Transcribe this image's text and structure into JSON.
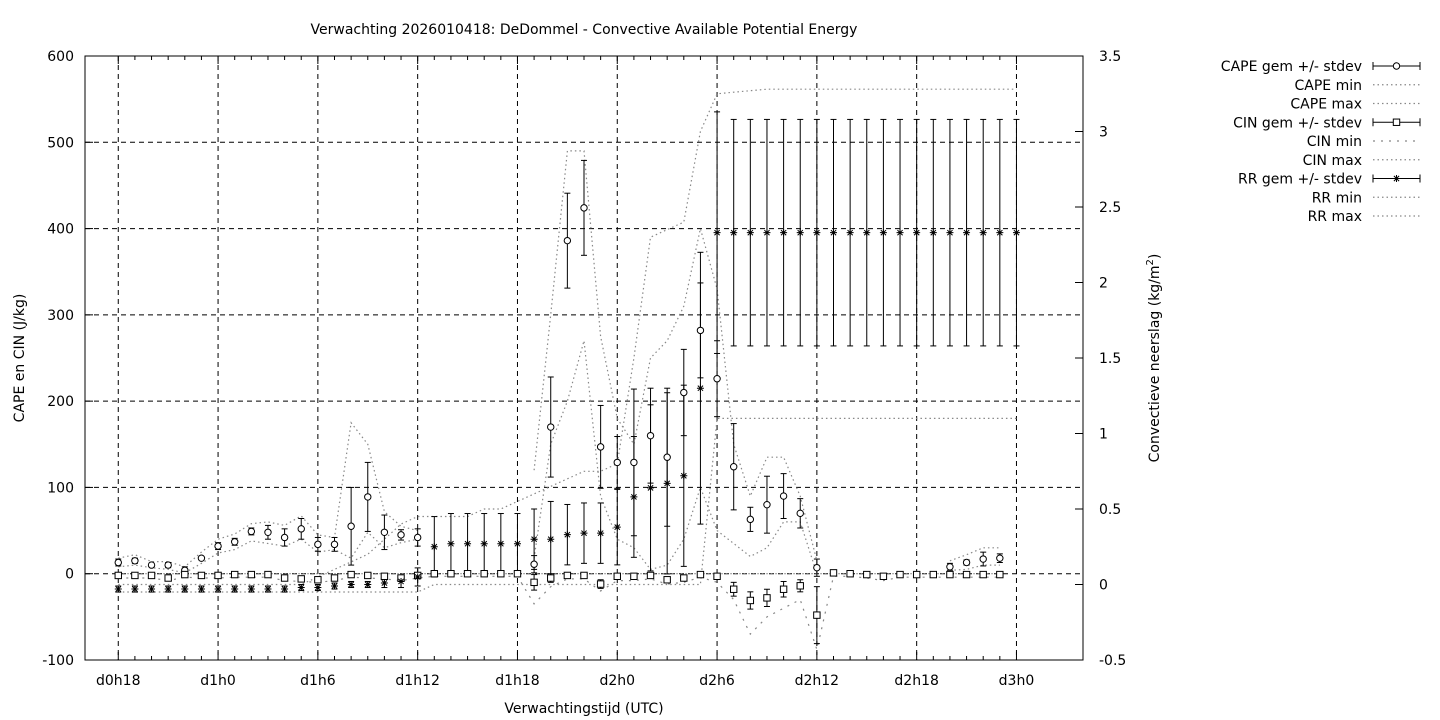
{
  "chart_data": {
    "type": "scatter",
    "title": "Verwachting 2026010418: DeDommel - Convective Available Potential Energy",
    "xlabel": "Verwachtingstijd (UTC)",
    "ylabel": "CAPE en CIN (J/kg)",
    "y2label": "Convectieve neerslag (kg/m",
    "y2label_sup": "2",
    "y2label_end": ")",
    "x_ticks": [
      "d0h18",
      "d1h0",
      "d1h6",
      "d1h12",
      "d1h18",
      "d2h0",
      "d2h6",
      "d2h12",
      "d2h18",
      "d3h0"
    ],
    "xlim": [
      -2,
      58
    ],
    "ylim": [
      -100,
      600
    ],
    "y_ticks": [
      -100,
      0,
      100,
      200,
      300,
      400,
      500,
      600
    ],
    "y2lim": [
      -0.5,
      3.5
    ],
    "y2_ticks": [
      -0.5,
      0,
      0.5,
      1,
      1.5,
      2,
      2.5,
      3,
      3.5
    ],
    "y2_tick_labels": [
      "-0.5",
      "0",
      "0.5",
      "1",
      "1.5",
      "2",
      "2.5",
      "3",
      "3.5"
    ],
    "grid": true,
    "legend_position": "outside-top-right",
    "legend": [
      "CAPE gem +/- stdev",
      "CAPE min",
      "CAPE max",
      "CIN gem +/- stdev",
      "CIN min",
      "CIN max",
      "RR gem +/- stdev",
      "RR min",
      "RR max"
    ],
    "x_hours": [
      0,
      1,
      2,
      3,
      4,
      5,
      6,
      7,
      8,
      9,
      10,
      11,
      12,
      13,
      14,
      15,
      16,
      17,
      18,
      19,
      20,
      21,
      22,
      23,
      24,
      25,
      26,
      27,
      28,
      29,
      30,
      31,
      32,
      33,
      34,
      35,
      36,
      37,
      38,
      39,
      40,
      41,
      42,
      43,
      44,
      45,
      46,
      47,
      48,
      49,
      50,
      51,
      52,
      53,
      54
    ],
    "series": [
      {
        "name": "CAPE gem +/- stdev",
        "axis": "y",
        "marker": "circle",
        "mean": [
          13,
          15,
          10,
          10,
          4,
          18,
          32,
          37,
          49,
          48,
          42,
          52,
          34,
          34,
          55,
          89,
          48,
          45,
          42,
          null,
          null,
          null,
          null,
          null,
          null,
          11,
          170,
          386,
          424,
          147,
          129,
          129,
          160,
          135,
          210,
          282,
          226,
          124,
          63,
          80,
          90,
          70,
          7,
          null,
          null,
          null,
          null,
          null,
          null,
          null,
          8,
          13,
          17,
          18,
          null
        ],
        "stdev": [
          4,
          3,
          2,
          3,
          4,
          2,
          4,
          4,
          4,
          8,
          10,
          12,
          8,
          8,
          45,
          40,
          20,
          6,
          10,
          null,
          null,
          null,
          null,
          null,
          null,
          10,
          58,
          55,
          55,
          48,
          30,
          85,
          55,
          80,
          50,
          55,
          44,
          50,
          14,
          33,
          26,
          17,
          10,
          null,
          null,
          null,
          null,
          null,
          null,
          null,
          4,
          3,
          8,
          5,
          null
        ]
      },
      {
        "name": "CAPE min",
        "axis": "y",
        "values": [
          8,
          10,
          7,
          5,
          1,
          12,
          24,
          28,
          38,
          35,
          32,
          40,
          25,
          28,
          18,
          48,
          30,
          36,
          40,
          null,
          null,
          null,
          null,
          null,
          null,
          18,
          150,
          200,
          270,
          90,
          40,
          30,
          5,
          10,
          40,
          100,
          50,
          35,
          20,
          30,
          60,
          60,
          0,
          null,
          null,
          null,
          null,
          null,
          null,
          null,
          4,
          5,
          10,
          10,
          null
        ]
      },
      {
        "name": "CAPE max",
        "axis": "y",
        "values": [
          18,
          22,
          14,
          14,
          8,
          25,
          40,
          46,
          58,
          60,
          56,
          67,
          45,
          42,
          175,
          150,
          72,
          55,
          50,
          null,
          null,
          null,
          null,
          null,
          null,
          120,
          300,
          490,
          490,
          275,
          180,
          150,
          250,
          270,
          310,
          400,
          330,
          150,
          90,
          135,
          135,
          90,
          15,
          null,
          null,
          null,
          null,
          null,
          null,
          null,
          15,
          22,
          30,
          30,
          null
        ]
      },
      {
        "name": "CIN gem +/- stdev",
        "axis": "y",
        "marker": "square",
        "mean": [
          -2,
          -2,
          -2,
          -5,
          -1,
          -2,
          -2,
          -1,
          -1,
          -1,
          -5,
          -6,
          -7,
          -5,
          -1,
          -2,
          -3,
          -5,
          -2,
          0,
          0,
          0,
          0,
          0,
          0,
          -10,
          -5,
          -2,
          -2,
          -12,
          -3,
          -3,
          -2,
          -7,
          -5,
          -1,
          -3,
          -18,
          -31,
          -28,
          -18,
          -14,
          -48,
          1,
          0,
          -1,
          -3,
          -1,
          -1,
          -1,
          -1,
          -1,
          -1,
          -1,
          null
        ],
        "stdev": [
          3,
          3,
          3,
          3,
          3,
          3,
          3,
          3,
          3,
          3,
          3,
          3,
          3,
          3,
          3,
          3,
          3,
          3,
          3,
          3,
          3,
          3,
          3,
          3,
          3,
          9,
          5,
          2,
          2,
          5,
          3,
          3,
          3,
          3,
          3,
          2,
          3,
          8,
          10,
          10,
          9,
          7,
          33,
          3,
          3,
          3,
          3,
          3,
          3,
          3,
          3,
          3,
          3,
          3,
          null
        ]
      },
      {
        "name": "CIN min",
        "axis": "y",
        "values": [
          -5,
          -5,
          -5,
          -8,
          -4,
          -5,
          -5,
          -4,
          -4,
          -4,
          -8,
          -9,
          -10,
          -8,
          -4,
          -5,
          -6,
          -8,
          -5,
          -3,
          -3,
          -3,
          -3,
          -3,
          -3,
          -35,
          -15,
          -6,
          -6,
          -20,
          -8,
          -8,
          -6,
          -12,
          -10,
          -4,
          -10,
          -30,
          -70,
          -50,
          -40,
          -30,
          -88,
          -3,
          -3,
          -5,
          -8,
          -4,
          -4,
          -4,
          -4,
          -4,
          -4,
          -4,
          null
        ]
      },
      {
        "name": "CIN max",
        "axis": "y",
        "values": [
          0,
          0,
          0,
          0,
          0,
          0,
          0,
          0,
          0,
          0,
          0,
          0,
          0,
          0,
          0,
          0,
          0,
          0,
          0,
          0,
          0,
          0,
          0,
          0,
          0,
          0,
          0,
          0,
          0,
          0,
          0,
          0,
          0,
          0,
          0,
          0,
          0,
          0,
          0,
          0,
          0,
          0,
          0,
          0,
          0,
          0,
          0,
          0,
          0,
          0,
          0,
          0,
          0,
          0,
          null
        ]
      },
      {
        "name": "RR gem +/- stdev",
        "axis": "y2",
        "marker": "asterisk",
        "mean": [
          -0.03,
          -0.03,
          -0.03,
          -0.03,
          -0.03,
          -0.03,
          -0.03,
          -0.03,
          -0.03,
          -0.03,
          -0.03,
          -0.02,
          -0.02,
          -0.01,
          0,
          0,
          0.01,
          0.02,
          0.05,
          0.25,
          0.27,
          0.27,
          0.27,
          0.27,
          0.27,
          0.3,
          0.3,
          0.33,
          0.34,
          0.34,
          0.38,
          0.58,
          0.64,
          0.67,
          0.72,
          1.3,
          2.33,
          2.33,
          2.33,
          2.33,
          2.33,
          2.33,
          2.33,
          2.33,
          2.33,
          2.33,
          2.33,
          2.33,
          2.33,
          2.33,
          2.33,
          2.33,
          2.33,
          2.33,
          2.33
        ],
        "stdev": [
          0.02,
          0.02,
          0.02,
          0.02,
          0.02,
          0.02,
          0.02,
          0.02,
          0.02,
          0.02,
          0.02,
          0.02,
          0.02,
          0.02,
          0.02,
          0.02,
          0.03,
          0.04,
          0.06,
          0.2,
          0.2,
          0.2,
          0.2,
          0.2,
          0.2,
          0.2,
          0.25,
          0.2,
          0.2,
          0.2,
          0.25,
          0.4,
          0.55,
          0.6,
          0.6,
          0.9,
          0.8,
          0.75,
          0.75,
          0.75,
          0.75,
          0.75,
          0.75,
          0.75,
          0.75,
          0.75,
          0.75,
          0.75,
          0.75,
          0.75,
          0.75,
          0.75,
          0.75,
          0.75,
          0.75
        ]
      },
      {
        "name": "RR min",
        "axis": "y2",
        "values": [
          -0.05,
          -0.05,
          -0.05,
          -0.05,
          -0.05,
          -0.05,
          -0.05,
          -0.05,
          -0.05,
          -0.05,
          -0.05,
          -0.05,
          -0.05,
          -0.05,
          -0.05,
          -0.05,
          -0.05,
          -0.05,
          -0.05,
          0,
          0,
          0,
          0,
          0,
          0,
          0,
          0,
          0,
          0,
          0,
          0,
          0,
          0,
          0,
          0,
          0,
          1.1,
          1.1,
          1.1,
          1.1,
          1.1,
          1.1,
          1.1,
          1.1,
          1.1,
          1.1,
          1.1,
          1.1,
          1.1,
          1.1,
          1.1,
          1.1,
          1.1,
          1.1,
          1.1
        ]
      },
      {
        "name": "RR max",
        "axis": "y2",
        "values": [
          0,
          0,
          0,
          0,
          0,
          0,
          0,
          0,
          0,
          0,
          0,
          0,
          0.05,
          0.1,
          0.15,
          0.2,
          0.3,
          0.4,
          0.45,
          0.45,
          0.45,
          0.45,
          0.5,
          0.5,
          0.55,
          0.6,
          0.65,
          0.7,
          0.75,
          0.75,
          0.8,
          1.5,
          2.3,
          2.35,
          2.4,
          3.0,
          3.25,
          3.26,
          3.27,
          3.28,
          3.28,
          3.28,
          3.28,
          3.28,
          3.28,
          3.28,
          3.28,
          3.28,
          3.28,
          3.28,
          3.28,
          3.28,
          3.28,
          3.28,
          3.28
        ]
      }
    ]
  }
}
